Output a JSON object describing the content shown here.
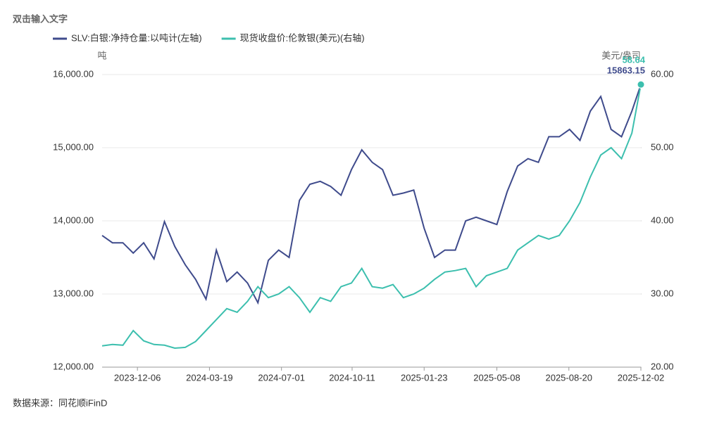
{
  "header": "双击输入文字",
  "source": "数据来源：同花顺iFinD",
  "chart_data": {
    "type": "line",
    "y_label": "吨",
    "y2_label": "美元/盎司",
    "x": [
      "2023-10-16",
      "2023-10-31",
      "2023-11-15",
      "2023-11-30",
      "2023-12-15",
      "2023-12-30",
      "2024-01-14",
      "2024-01-29",
      "2024-02-13",
      "2024-02-28",
      "2024-03-14",
      "2024-03-29",
      "2024-04-13",
      "2024-04-28",
      "2024-05-13",
      "2024-05-28",
      "2024-06-12",
      "2024-06-27",
      "2024-07-12",
      "2024-07-27",
      "2024-08-11",
      "2024-08-26",
      "2024-09-10",
      "2024-09-25",
      "2024-10-10",
      "2024-10-25",
      "2024-11-09",
      "2024-11-24",
      "2024-12-09",
      "2024-12-24",
      "2025-01-08",
      "2025-01-23",
      "2025-02-07",
      "2025-02-22",
      "2025-03-09",
      "2025-03-24",
      "2025-04-08",
      "2025-04-23",
      "2025-05-08",
      "2025-05-23",
      "2025-06-07",
      "2025-06-22",
      "2025-07-07",
      "2025-07-22",
      "2025-08-06",
      "2025-08-21",
      "2025-09-05",
      "2025-09-20",
      "2025-10-05",
      "2025-10-20",
      "2025-11-04",
      "2025-11-19",
      "2025-12-02"
    ],
    "series": [
      {
        "name": "SLV:白银:净持仓量:以吨计(左轴)",
        "color": "#3f4b8c",
        "axis": "y",
        "values": [
          13800,
          13700,
          13700,
          13560,
          13700,
          13480,
          13990,
          13650,
          13400,
          13200,
          12930,
          13600,
          13170,
          13300,
          13150,
          12880,
          13460,
          13600,
          13500,
          14280,
          14500,
          14540,
          14470,
          14350,
          14700,
          14970,
          14800,
          14700,
          14350,
          14380,
          14420,
          13900,
          13500,
          13600,
          13600,
          14000,
          14050,
          14000,
          13950,
          14400,
          14750,
          14850,
          14800,
          15150,
          15150,
          15250,
          15100,
          15500,
          15700,
          15250,
          15150,
          15500,
          15863.15
        ]
      },
      {
        "name": "现货收盘价:伦敦银(美元)(右轴)",
        "color": "#3cbfae",
        "axis": "y2",
        "values": [
          22.9,
          23.1,
          23.0,
          25.0,
          23.6,
          23.1,
          23.0,
          22.6,
          22.7,
          23.5,
          25.0,
          26.5,
          28.0,
          27.5,
          29.0,
          31.0,
          29.5,
          30.0,
          31.0,
          29.5,
          27.5,
          29.5,
          29.0,
          31.0,
          31.5,
          33.5,
          31.0,
          30.8,
          31.3,
          29.5,
          30.0,
          30.8,
          32.0,
          33.0,
          33.2,
          33.5,
          31.0,
          32.5,
          33.0,
          33.5,
          36.0,
          37.0,
          38.0,
          37.5,
          38.0,
          40.0,
          42.5,
          46.0,
          49.0,
          50.0,
          48.5,
          52.0,
          58.64
        ]
      }
    ],
    "xlim": [
      "2023-10-16",
      "2025-12-02"
    ],
    "xticks": [
      "2023-12-06",
      "2024-03-19",
      "2024-07-01",
      "2024-10-11",
      "2025-01-23",
      "2025-05-08",
      "2025-08-20",
      "2025-12-02"
    ],
    "ylim": [
      12000,
      16000
    ],
    "yticks": [
      {
        "value": 12000,
        "label": "12,000.00"
      },
      {
        "value": 13000,
        "label": "13,000.00"
      },
      {
        "value": 14000,
        "label": "14,000.00"
      },
      {
        "value": 15000,
        "label": "15,000.00"
      },
      {
        "value": 16000,
        "label": "16,000.00"
      }
    ],
    "y2lim": [
      20,
      60
    ],
    "y2ticks": [
      {
        "value": 20,
        "label": "20.00"
      },
      {
        "value": 30,
        "label": "30.00"
      },
      {
        "value": 40,
        "label": "40.00"
      },
      {
        "value": 50,
        "label": "50.00"
      },
      {
        "value": 60,
        "label": "60.00"
      }
    ],
    "grid": true,
    "legend": "top"
  }
}
